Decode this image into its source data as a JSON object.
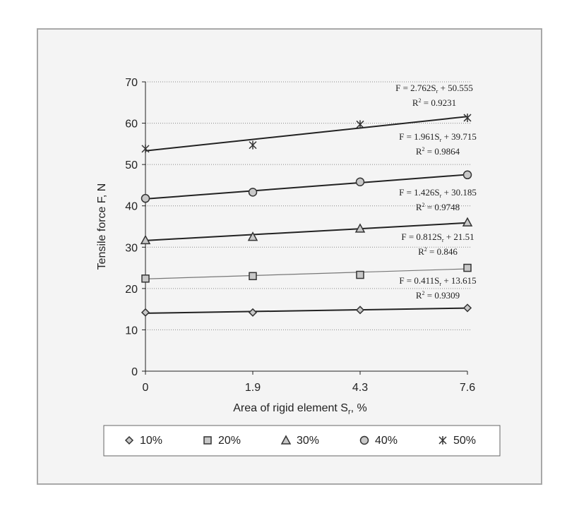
{
  "chart_data": {
    "type": "scatter",
    "title": "",
    "xlabel": "Area of rigid element S",
    "xlabel_sub": "r",
    "xlabel_suffix": ", %",
    "ylabel": "Tensile force F, N",
    "x_categories": [
      "0",
      "1.9",
      "4.3",
      "7.6"
    ],
    "ylim": [
      0,
      70
    ],
    "yticks": [
      0,
      10,
      20,
      30,
      40,
      50,
      60,
      70
    ],
    "grid": "horizontal dotted",
    "legend_placement": "bottom",
    "colors": {
      "frame_bg": "#f4f4f4",
      "frame_border": "#a8a8a8",
      "marker_fill": "#c8c8c8",
      "line": "#222222"
    },
    "series": [
      {
        "name": "10%",
        "marker": "diamond",
        "values": [
          14.2,
          14.2,
          14.8,
          15.3
        ],
        "trend": {
          "slope": 0.411,
          "intercept": 13.615,
          "eq": "F = 0.411S",
          "eq_tail": " + 13.615",
          "r2": "R",
          "r2_val": " = 0.9309"
        }
      },
      {
        "name": "20%",
        "marker": "square",
        "values": [
          22.4,
          23.0,
          23.3,
          25.0
        ],
        "trend": {
          "slope": 0.812,
          "intercept": 21.51,
          "eq": "F = 0.812S",
          "eq_tail": " + 21.51",
          "r2": "R",
          "r2_val": " = 0.846"
        }
      },
      {
        "name": "30%",
        "marker": "triangle",
        "values": [
          31.7,
          32.5,
          34.5,
          36.0
        ],
        "trend": {
          "slope": 1.426,
          "intercept": 30.185,
          "eq": "F = 1.426S",
          "eq_tail": " + 30.185",
          "r2": "R",
          "r2_val": " = 0.9748"
        }
      },
      {
        "name": "40%",
        "marker": "circle",
        "values": [
          41.8,
          43.3,
          45.8,
          47.5
        ],
        "trend": {
          "slope": 1.961,
          "intercept": 39.715,
          "eq": "F = 1.961S",
          "eq_tail": " + 39.715",
          "r2": "R",
          "r2_val": " = 0.9864"
        }
      },
      {
        "name": "50%",
        "marker": "asterisk",
        "values": [
          53.8,
          54.7,
          59.7,
          61.3
        ],
        "trend": {
          "slope": 2.762,
          "intercept": 50.555,
          "eq": "F = 2.762S",
          "eq_tail": " + 50.555",
          "r2": "R",
          "r2_val": " = 0.9231"
        }
      }
    ]
  }
}
